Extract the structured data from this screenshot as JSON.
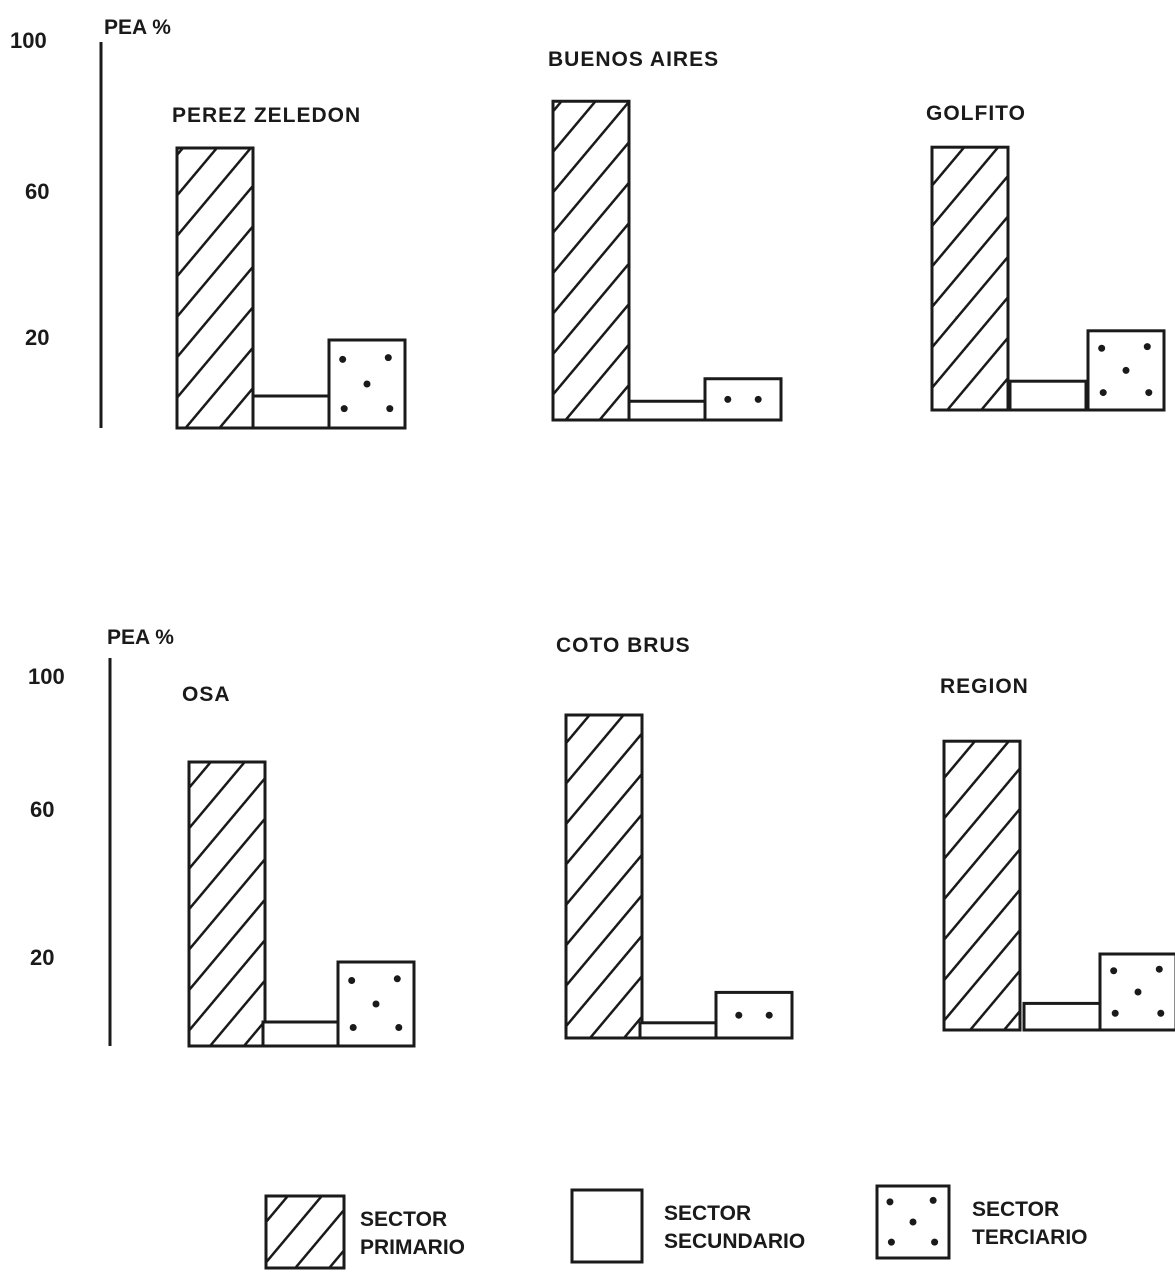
{
  "chart_data": {
    "type": "bar",
    "ylabel": "PEA %",
    "yticks": [
      20,
      60,
      100
    ],
    "ylim": [
      0,
      100
    ],
    "categories": [
      "SECTOR PRIMARIO",
      "SECTOR SECUNDARIO",
      "SECTOR TERCIARIO"
    ],
    "legend": [
      {
        "label_line1": "SECTOR",
        "label_line2": "PRIMARIO",
        "pattern": "hatch"
      },
      {
        "label_line1": "SECTOR",
        "label_line2": "SECUNDARIO",
        "pattern": "blank"
      },
      {
        "label_line1": "SECTOR",
        "label_line2": "TERCIARIO",
        "pattern": "dots"
      }
    ],
    "legend_position": "bottom",
    "panels": [
      {
        "title": "PEREZ ZELEDON",
        "values": [
          70,
          8,
          22
        ]
      },
      {
        "title": "BUENOS AIRES",
        "values": [
          85,
          5,
          11
        ]
      },
      {
        "title": "GOLFITO",
        "values": [
          73,
          8,
          22
        ]
      },
      {
        "title": "OSA",
        "values": [
          71,
          6,
          21
        ]
      },
      {
        "title": "COTO BRUS",
        "values": [
          85,
          4,
          12
        ]
      },
      {
        "title": "REGION",
        "values": [
          76,
          7,
          20
        ]
      }
    ],
    "colors": {
      "ink": "#1a1a1a",
      "background": "#ffffff"
    }
  }
}
